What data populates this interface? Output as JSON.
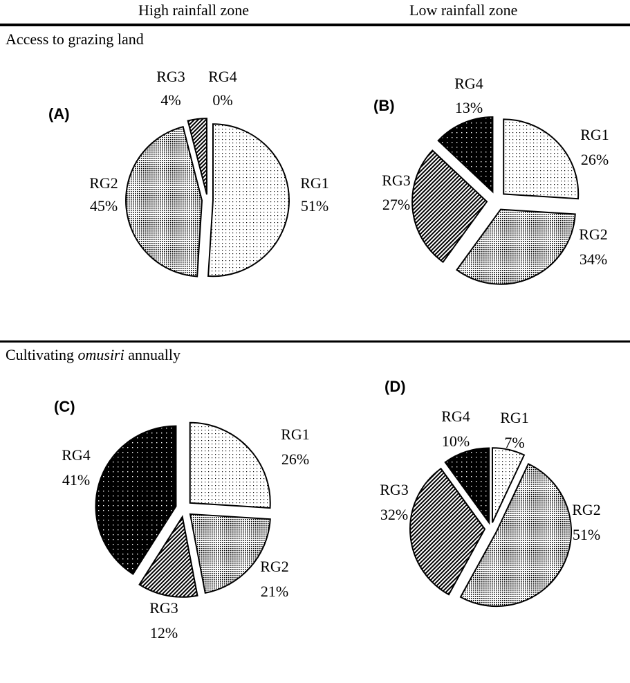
{
  "header": {
    "left_column": "High rainfall zone",
    "right_column": "Low rainfall zone"
  },
  "sections": [
    {
      "title": "Access to grazing land",
      "title_italic": "",
      "title_suffix": ""
    },
    {
      "title": "Cultivating ",
      "title_italic": "omusiri",
      "title_suffix": "  annually"
    }
  ],
  "chart_data": [
    {
      "type": "pie",
      "panel": "(A)",
      "zone": "High rainfall zone",
      "section": "Access to grazing land",
      "slices": [
        {
          "label": "RG1",
          "value": 51,
          "text": "51%",
          "pattern": "dots-light"
        },
        {
          "label": "RG2",
          "value": 45,
          "text": "45%",
          "pattern": "dots-medium"
        },
        {
          "label": "RG3",
          "value": 4,
          "text": "4%",
          "pattern": "diagonal"
        },
        {
          "label": "RG4",
          "value": 0,
          "text": "0%",
          "pattern": "dots-dark"
        }
      ]
    },
    {
      "type": "pie",
      "panel": "(B)",
      "zone": "Low rainfall zone",
      "section": "Access to grazing land",
      "slices": [
        {
          "label": "RG1",
          "value": 26,
          "text": "26%",
          "pattern": "dots-light"
        },
        {
          "label": "RG2",
          "value": 34,
          "text": "34%",
          "pattern": "dots-medium"
        },
        {
          "label": "RG3",
          "value": 27,
          "text": "27%",
          "pattern": "diagonal"
        },
        {
          "label": "RG4",
          "value": 13,
          "text": "13%",
          "pattern": "dots-dark"
        }
      ]
    },
    {
      "type": "pie",
      "panel": "(C)",
      "zone": "High rainfall zone",
      "section": "Cultivating omusiri annually",
      "slices": [
        {
          "label": "RG1",
          "value": 26,
          "text": "26%",
          "pattern": "dots-light"
        },
        {
          "label": "RG2",
          "value": 21,
          "text": "21%",
          "pattern": "dots-medium"
        },
        {
          "label": "RG3",
          "value": 12,
          "text": "12%",
          "pattern": "diagonal"
        },
        {
          "label": "RG4",
          "value": 41,
          "text": "41%",
          "pattern": "dots-dark"
        }
      ]
    },
    {
      "type": "pie",
      "panel": "(D)",
      "zone": "Low rainfall zone",
      "section": "Cultivating omusiri annually",
      "slices": [
        {
          "label": "RG1",
          "value": 7,
          "text": "7%",
          "pattern": "dots-light"
        },
        {
          "label": "RG2",
          "value": 51,
          "text": "51%",
          "pattern": "dots-medium"
        },
        {
          "label": "RG3",
          "value": 32,
          "text": "32%",
          "pattern": "diagonal"
        },
        {
          "label": "RG4",
          "value": 10,
          "text": "10%",
          "pattern": "dots-dark"
        }
      ]
    }
  ]
}
